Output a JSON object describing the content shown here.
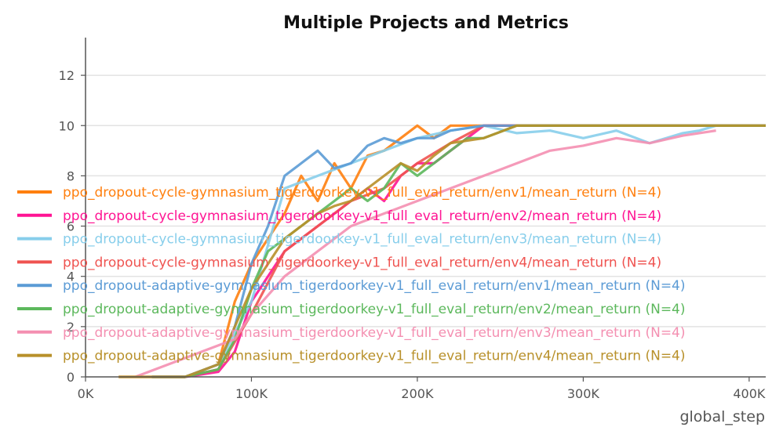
{
  "chart_data": {
    "type": "line",
    "title": "Multiple Projects and Metrics",
    "xlabel": "global_step",
    "ylabel": "",
    "xlim": [
      0,
      410000
    ],
    "ylim": [
      0,
      13.5
    ],
    "x_ticks": [
      0,
      100000,
      200000,
      300000,
      400000
    ],
    "x_tick_labels": [
      "0K",
      "100K",
      "200K",
      "300K",
      "400K"
    ],
    "y_ticks": [
      0,
      2,
      4,
      6,
      8,
      10,
      12
    ],
    "y_tick_labels": [
      "0",
      "2",
      "4",
      "6",
      "8",
      "10",
      "12"
    ],
    "grid": "horizontal",
    "legend_position": "left-center",
    "series": [
      {
        "name": "ppo_dropout-cycle-gymnasium_tigerdoorkey-v1_full_eval_return/env1/mean_return (N=4)",
        "color": "#ff7f0e",
        "x": [
          20000,
          60000,
          80000,
          90000,
          100000,
          110000,
          120000,
          130000,
          140000,
          150000,
          160000,
          170000,
          180000,
          190000,
          200000,
          210000,
          220000,
          240000,
          260000,
          300000,
          410000
        ],
        "y": [
          0,
          0,
          0.5,
          3,
          4.5,
          5.5,
          6.5,
          8,
          7,
          8.5,
          7.5,
          8.8,
          9,
          9.5,
          10,
          9.5,
          10,
          10,
          10,
          10,
          10
        ]
      },
      {
        "name": "ppo_dropout-cycle-gymnasium_tigerdoorkey-v1_full_eval_return/env2/mean_return (N=4)",
        "color": "#ff1493",
        "x": [
          40000,
          60000,
          80000,
          90000,
          100000,
          110000,
          120000,
          130000,
          140000,
          150000,
          160000,
          170000,
          180000,
          190000,
          200000,
          210000,
          220000,
          230000,
          240000,
          260000,
          300000,
          410000
        ],
        "y": [
          0,
          0,
          0.2,
          1,
          3,
          4,
          5,
          5.5,
          6,
          6.5,
          7,
          7.5,
          7,
          8,
          8.5,
          8.5,
          9,
          9.5,
          10,
          10,
          10,
          10
        ]
      },
      {
        "name": "ppo_dropout-cycle-gymnasium_tigerdoorkey-v1_full_eval_return/env3/mean_return (N=4)",
        "color": "#87ceeb",
        "x": [
          40000,
          60000,
          80000,
          100000,
          120000,
          140000,
          160000,
          180000,
          200000,
          220000,
          240000,
          260000,
          280000,
          300000,
          320000,
          340000,
          360000,
          370000,
          380000
        ],
        "y": [
          0,
          0,
          0.5,
          3,
          7.5,
          8,
          8.5,
          9,
          9.5,
          9.8,
          10,
          9.7,
          9.8,
          9.5,
          9.8,
          9.3,
          9.7,
          9.8,
          10
        ]
      },
      {
        "name": "ppo_dropout-cycle-gymnasium_tigerdoorkey-v1_full_eval_return/env4/mean_return (N=4)",
        "color": "#ef5350",
        "x": [
          40000,
          60000,
          80000,
          100000,
          120000,
          140000,
          160000,
          180000,
          200000,
          220000,
          240000,
          260000,
          300000,
          410000
        ],
        "y": [
          0,
          0,
          0.3,
          2.5,
          5,
          6,
          7,
          7.5,
          8.5,
          9.3,
          10,
          10,
          10,
          10
        ]
      },
      {
        "name": "ppo_dropout-adaptive-gymnasium_tigerdoorkey-v1_full_eval_return/env1/mean_return (N=4)",
        "color": "#5b9bd5",
        "x": [
          40000,
          60000,
          80000,
          90000,
          100000,
          110000,
          120000,
          130000,
          140000,
          150000,
          160000,
          170000,
          180000,
          190000,
          200000,
          210000,
          220000,
          240000,
          260000,
          300000,
          410000
        ],
        "y": [
          0,
          0,
          0.5,
          2,
          4.5,
          6,
          8,
          8.5,
          9,
          8.3,
          8.5,
          9.2,
          9.5,
          9.3,
          9.5,
          9.5,
          9.8,
          10,
          10,
          10,
          10
        ]
      },
      {
        "name": "ppo_dropout-adaptive-gymnasium_tigerdoorkey-v1_full_eval_return/env2/mean_return (N=4)",
        "color": "#5cb85c",
        "x": [
          40000,
          60000,
          80000,
          90000,
          100000,
          110000,
          120000,
          130000,
          140000,
          150000,
          160000,
          170000,
          180000,
          190000,
          200000,
          210000,
          220000,
          230000,
          240000,
          260000,
          300000,
          410000
        ],
        "y": [
          0,
          0,
          0.3,
          1.5,
          3.5,
          5,
          5.5,
          6,
          6.5,
          7,
          7.5,
          7,
          7.5,
          8.5,
          8,
          8.5,
          9,
          9.5,
          9.5,
          10,
          10,
          10
        ]
      },
      {
        "name": "ppo_dropout-adaptive-gymnasium_tigerdoorkey-v1_full_eval_return/env3/mean_return (N=4)",
        "color": "#f48fb1",
        "x": [
          30000,
          50000,
          70000,
          90000,
          100000,
          120000,
          140000,
          160000,
          180000,
          200000,
          220000,
          240000,
          260000,
          280000,
          300000,
          320000,
          340000,
          360000,
          380000
        ],
        "y": [
          0,
          0.5,
          1,
          1.5,
          2.5,
          4,
          5,
          6,
          6.5,
          7,
          7.5,
          8,
          8.5,
          9,
          9.2,
          9.5,
          9.3,
          9.6,
          9.8
        ]
      },
      {
        "name": "ppo_dropout-adaptive-gymnasium_tigerdoorkey-v1_full_eval_return/env4/mean_return (N=4)",
        "color": "#b8902a",
        "x": [
          20000,
          60000,
          80000,
          90000,
          100000,
          110000,
          120000,
          130000,
          140000,
          150000,
          160000,
          170000,
          180000,
          190000,
          200000,
          210000,
          220000,
          240000,
          260000,
          300000,
          410000
        ],
        "y": [
          0,
          0,
          0.5,
          2,
          3.5,
          4.5,
          5.5,
          6,
          6.5,
          6.8,
          7,
          7.5,
          8,
          8.5,
          8.2,
          8.8,
          9.3,
          9.5,
          10,
          10,
          10
        ]
      }
    ]
  }
}
